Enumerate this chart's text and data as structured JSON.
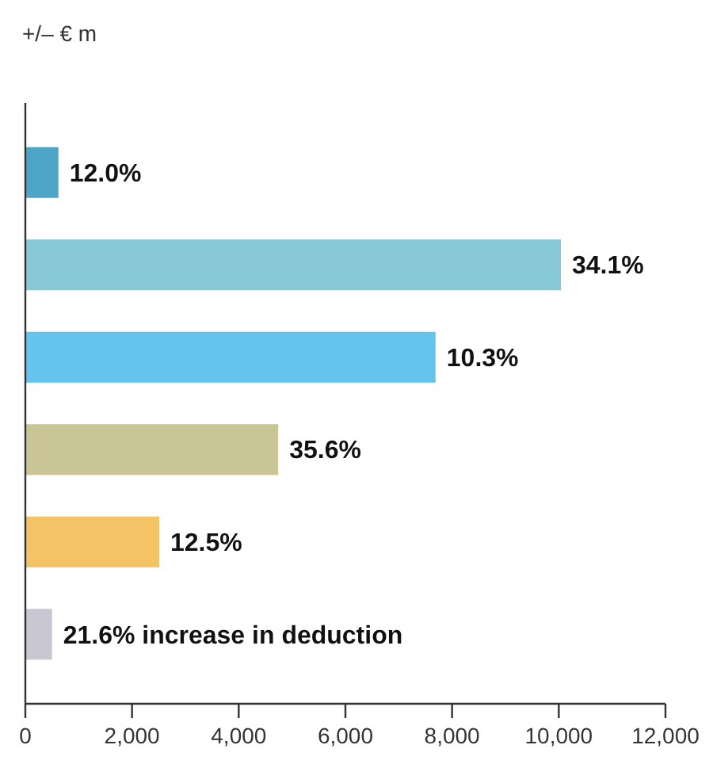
{
  "chart_data": {
    "type": "bar",
    "orientation": "horizontal",
    "xlabel": "+/– € m",
    "categories": [
      null,
      null,
      null,
      null,
      null,
      null
    ],
    "values": [
      620,
      10040,
      7690,
      4740,
      2510,
      500
    ],
    "colors": [
      "#4da6c8",
      "#87cad6",
      "#65c4ee",
      "#c9c594",
      "#f4c365",
      "#c8c7d2"
    ],
    "annotations": [
      {
        "text": "12.0%",
        "x": 620
      },
      {
        "text": "34.1%",
        "x": 10040
      },
      {
        "text": "10.3%",
        "x": 7690
      },
      {
        "text": "35.6%",
        "x": 4740
      },
      {
        "text": "12.5%",
        "x": 2510
      },
      {
        "text": "21.6% increase in deduction",
        "x": 500
      }
    ],
    "xlim": [
      0,
      12000
    ],
    "xticks": [
      0,
      {
        "value": 2000,
        "label": "2,000"
      },
      {
        "value": 4000,
        "label": "4,000"
      },
      {
        "value": 6000,
        "label": "6,000"
      },
      {
        "value": 8000,
        "label": "8,000"
      },
      {
        "value": 10000,
        "label": "10,000"
      },
      {
        "value": 12000,
        "label": "12,000"
      }
    ],
    "grid": false
  }
}
